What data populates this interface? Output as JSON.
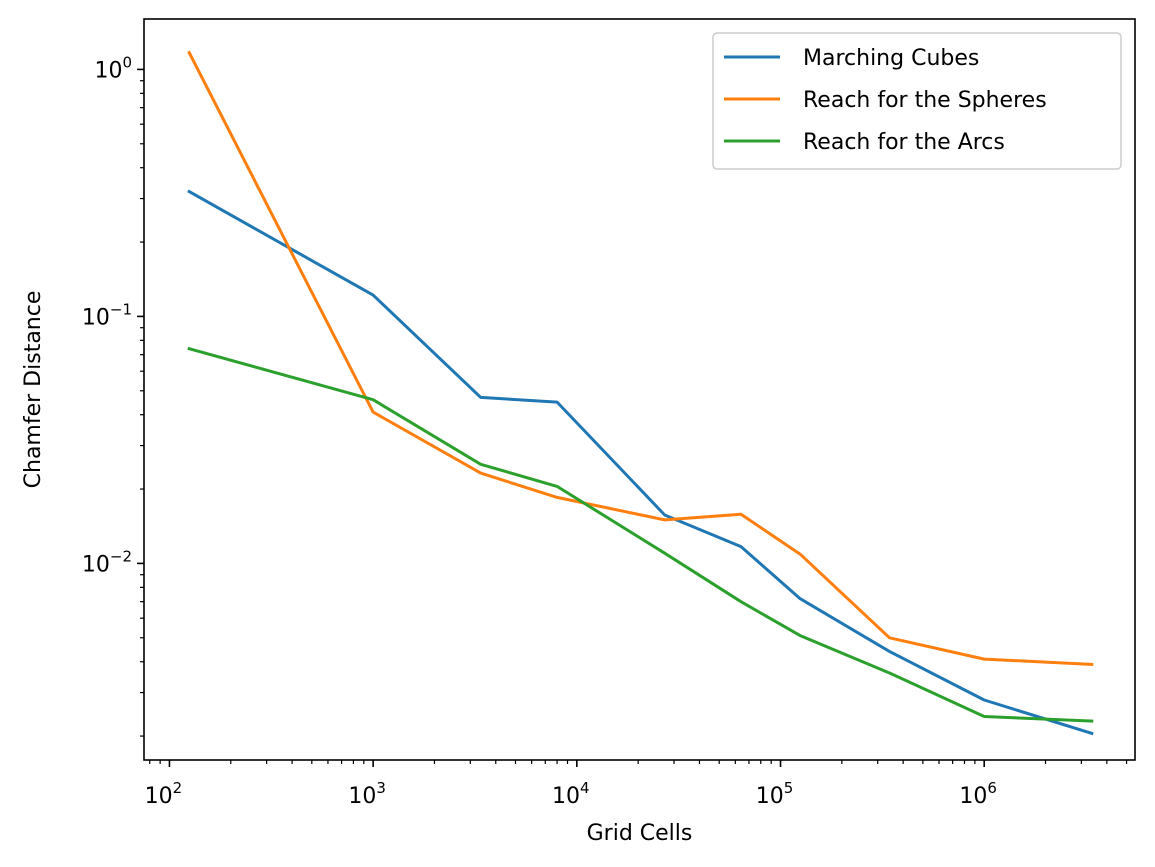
{
  "chart_data": {
    "type": "line",
    "title": "",
    "xlabel": "Grid Cells",
    "ylabel": "Chamfer Distance",
    "xscale": "log",
    "yscale": "log",
    "xlim": [
      75,
      5500000
    ],
    "ylim": [
      0.0016,
      1.6
    ],
    "x": [
      125,
      1000,
      3375,
      8000,
      27000,
      64000,
      125000,
      343000,
      1000000,
      3375000
    ],
    "grid": false,
    "legend": {
      "position": "top-right"
    },
    "x_ticks": [
      {
        "value": 100,
        "base": "10",
        "exp": "2"
      },
      {
        "value": 1000,
        "base": "10",
        "exp": "3"
      },
      {
        "value": 10000,
        "base": "10",
        "exp": "4"
      },
      {
        "value": 100000,
        "base": "10",
        "exp": "5"
      },
      {
        "value": 1000000,
        "base": "10",
        "exp": "6"
      }
    ],
    "y_ticks": [
      {
        "value": 0.01,
        "base": "10",
        "exp": "−2"
      },
      {
        "value": 0.1,
        "base": "10",
        "exp": "−1"
      },
      {
        "value": 1,
        "base": "10",
        "exp": "0"
      }
    ],
    "series": [
      {
        "name": "Marching Cubes",
        "color": "#1f77b4",
        "values": [
          0.32,
          0.122,
          0.047,
          0.045,
          0.0157,
          0.0117,
          0.0072,
          0.0044,
          0.0028,
          0.00205
        ]
      },
      {
        "name": "Reach for the Spheres",
        "color": "#ff7f0e",
        "values": [
          1.17,
          0.041,
          0.0232,
          0.0185,
          0.015,
          0.0158,
          0.0109,
          0.005,
          0.0041,
          0.0039
        ]
      },
      {
        "name": "Reach for the Arcs",
        "color": "#2ca02c",
        "values": [
          0.074,
          0.046,
          0.0252,
          0.0205,
          0.011,
          0.007,
          0.0051,
          0.0036,
          0.0024,
          0.0023
        ]
      }
    ]
  }
}
